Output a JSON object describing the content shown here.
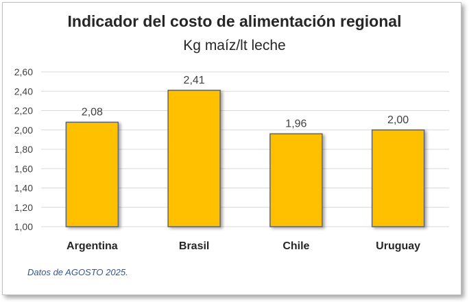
{
  "chart_data": {
    "type": "bar",
    "title": "Indicador del costo de alimentación regional",
    "subtitle": "Kg maíz/lt leche",
    "categories": [
      "Argentina",
      "Brasil",
      "Chile",
      "Uruguay"
    ],
    "values": [
      2.08,
      2.41,
      1.96,
      2.0
    ],
    "data_labels": [
      "2,08",
      "2,41",
      "1,96",
      "2,00"
    ],
    "ylim": [
      1.0,
      2.6
    ],
    "yticks": [
      "1,00",
      "1,20",
      "1,40",
      "1,60",
      "1,80",
      "2,00",
      "2,20",
      "2,40",
      "2,60"
    ],
    "grid": true,
    "xlabel": "",
    "ylabel": "",
    "bar_color": "#ffc000",
    "note": "Datos de AGOSTO 2025."
  }
}
